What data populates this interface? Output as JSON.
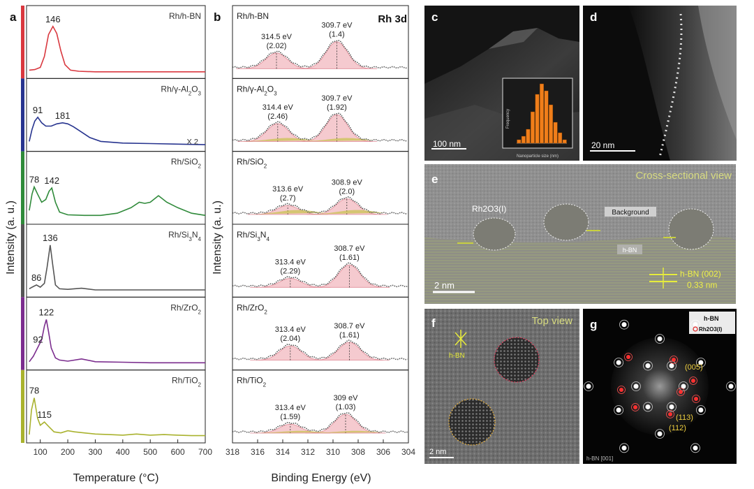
{
  "panel_letters": {
    "a": "a",
    "b": "b",
    "c": "c",
    "d": "d",
    "e": "e",
    "f": "f",
    "g": "g"
  },
  "chart_data": [
    {
      "panel": "a",
      "type": "line",
      "xlabel": "Temperature (°C)",
      "ylabel": "Intensity (a. u.)",
      "xlim": [
        50,
        700
      ],
      "xticks": [
        100,
        200,
        300,
        400,
        500,
        600,
        700
      ],
      "color_strip": [
        "#d9383f",
        "#27348f",
        "#2f8a3a",
        "#555555",
        "#7b2d8e",
        "#a9b22e"
      ],
      "series": [
        {
          "name": "Rh/h-BN",
          "color": "#d9383f",
          "peak_labels": [
            "146"
          ],
          "note": "",
          "x": [
            60,
            80,
            100,
            115,
            130,
            146,
            160,
            175,
            190,
            210,
            240,
            300,
            400,
            500,
            600,
            700
          ],
          "y": [
            0.05,
            0.06,
            0.1,
            0.3,
            0.7,
            0.85,
            0.72,
            0.4,
            0.15,
            0.05,
            0.03,
            0.02,
            0.02,
            0.02,
            0.02,
            0.02
          ]
        },
        {
          "name": "Rh/γ-Al2O3",
          "color": "#27348f",
          "peak_labels": [
            "91",
            "181"
          ],
          "note": "X 2",
          "x": [
            60,
            70,
            80,
            91,
            105,
            120,
            140,
            160,
            181,
            200,
            220,
            250,
            280,
            320,
            400,
            500,
            600,
            700
          ],
          "y": [
            0.08,
            0.3,
            0.45,
            0.52,
            0.42,
            0.36,
            0.36,
            0.4,
            0.42,
            0.4,
            0.35,
            0.25,
            0.15,
            0.08,
            0.05,
            0.04,
            0.03,
            0.02
          ]
        },
        {
          "name": "Rh/SiO2",
          "color": "#2f8a3a",
          "peak_labels": [
            "78",
            "142"
          ],
          "note": "",
          "x": [
            60,
            70,
            78,
            90,
            105,
            120,
            132,
            142,
            155,
            170,
            200,
            260,
            320,
            380,
            430,
            460,
            480,
            500,
            530,
            560,
            600,
            650,
            700
          ],
          "y": [
            0.15,
            0.45,
            0.58,
            0.45,
            0.3,
            0.35,
            0.5,
            0.56,
            0.3,
            0.12,
            0.07,
            0.06,
            0.06,
            0.1,
            0.2,
            0.3,
            0.28,
            0.3,
            0.42,
            0.3,
            0.2,
            0.1,
            0.06
          ]
        },
        {
          "name": "Rh/Si3N4",
          "color": "#555555",
          "peak_labels": [
            "86",
            "136"
          ],
          "note": "",
          "x": [
            60,
            70,
            86,
            100,
            115,
            125,
            136,
            145,
            155,
            170,
            200,
            250,
            300,
            350,
            400,
            500,
            600,
            700
          ],
          "y": [
            0.05,
            0.08,
            0.12,
            0.08,
            0.15,
            0.45,
            0.85,
            0.5,
            0.12,
            0.05,
            0.04,
            0.06,
            0.03,
            0.03,
            0.03,
            0.03,
            0.03,
            0.03
          ]
        },
        {
          "name": "Rh/ZrO2",
          "color": "#7b2d8e",
          "peak_labels": [
            "92",
            "122"
          ],
          "note": "",
          "x": [
            60,
            75,
            92,
            105,
            115,
            122,
            130,
            140,
            155,
            170,
            200,
            250,
            300,
            400,
            500,
            600,
            700
          ],
          "y": [
            0.05,
            0.15,
            0.32,
            0.45,
            0.7,
            0.82,
            0.6,
            0.3,
            0.12,
            0.08,
            0.06,
            0.1,
            0.05,
            0.04,
            0.03,
            0.03,
            0.03
          ]
        },
        {
          "name": "Rh/TiO2",
          "color": "#a9b22e",
          "peak_labels": [
            "78",
            "115"
          ],
          "note": "",
          "x": [
            60,
            68,
            78,
            90,
            100,
            115,
            130,
            150,
            175,
            200,
            225,
            260,
            300,
            350,
            400,
            450,
            500,
            550,
            600,
            650,
            700
          ],
          "y": [
            0.05,
            0.5,
            0.72,
            0.35,
            0.22,
            0.28,
            0.2,
            0.1,
            0.08,
            0.12,
            0.1,
            0.08,
            0.06,
            0.05,
            0.04,
            0.06,
            0.04,
            0.05,
            0.04,
            0.03,
            0.03
          ]
        }
      ]
    },
    {
      "panel": "b",
      "type": "line",
      "title": "Rh 3d",
      "xlabel": "Binding Energy (eV)",
      "ylabel": "Intensity (a. u.)",
      "xlim": [
        318,
        304
      ],
      "xticks": [
        318,
        316,
        314,
        312,
        310,
        308,
        306,
        304
      ],
      "series": [
        {
          "name": "Rh/h-BN",
          "peaks": [
            {
              "label": "314.5 eV",
              "sub": "(2.02)",
              "center": 314.5,
              "height": 0.35
            },
            {
              "label": "309.7 eV",
              "sub": "(1.4)",
              "center": 309.7,
              "height": 0.6
            }
          ],
          "satellite": 0
        },
        {
          "name": "Rh/γ-Al2O3",
          "peaks": [
            {
              "label": "314.4 eV",
              "sub": "(2.46)",
              "center": 314.4,
              "height": 0.4
            },
            {
              "label": "309.7 eV",
              "sub": "(1.92)",
              "center": 309.7,
              "height": 0.6
            }
          ],
          "satellite": 0.08
        },
        {
          "name": "Rh/SiO2",
          "peaks": [
            {
              "label": "313.6 eV",
              "sub": "(2.7)",
              "center": 313.6,
              "height": 0.2
            },
            {
              "label": "308.9 eV",
              "sub": "(2.0)",
              "center": 308.9,
              "height": 0.35
            }
          ],
          "satellite": 0.1
        },
        {
          "name": "Rh/Si3N4",
          "peaks": [
            {
              "label": "313.4 eV",
              "sub": "(2.29)",
              "center": 313.4,
              "height": 0.2
            },
            {
              "label": "308.7 eV",
              "sub": "(1.61)",
              "center": 308.7,
              "height": 0.5
            }
          ],
          "satellite": 0
        },
        {
          "name": "Rh/ZrO2",
          "peaks": [
            {
              "label": "313.4 eV",
              "sub": "(2.04)",
              "center": 313.4,
              "height": 0.32
            },
            {
              "label": "308.7 eV",
              "sub": "(1.61)",
              "center": 308.7,
              "height": 0.4
            }
          ],
          "satellite": 0
        },
        {
          "name": "Rh/TiO2",
          "peaks": [
            {
              "label": "313.4 eV",
              "sub": "(1.59)",
              "center": 313.4,
              "height": 0.2
            },
            {
              "label": "309 eV",
              "sub": "(1.03)",
              "center": 309.0,
              "height": 0.42
            }
          ],
          "satellite": 0.05
        }
      ]
    },
    {
      "panel": "c-inset",
      "type": "bar",
      "xlabel": "Nanoparticle size (nm)",
      "ylabel": "Frequency",
      "values": [
        1,
        2,
        4,
        9,
        14,
        17,
        15,
        11,
        6,
        3,
        1
      ],
      "color": "#f07e1a"
    }
  ],
  "images": {
    "c": {
      "scale_label": "100 nm"
    },
    "d": {
      "scale_label": "20 nm"
    },
    "e": {
      "title": "Cross-sectional view",
      "particle_label": "Rh2O3(I)",
      "background_label": "Background",
      "hbn_label": "h-BN",
      "spacing_label_1": "h-BN (002)",
      "spacing_label_2": "0.33 nm",
      "scale_label": "2 nm"
    },
    "f": {
      "title": "Top view",
      "hbn_label": "h-BN",
      "scale_label": "2 nm"
    },
    "g": {
      "legend_hbn": "h-BN",
      "legend_rh": "Rh2O3(I)",
      "labels": [
        "(005)",
        "(113)",
        "(112)"
      ],
      "footer": "h-BN [001]"
    }
  }
}
